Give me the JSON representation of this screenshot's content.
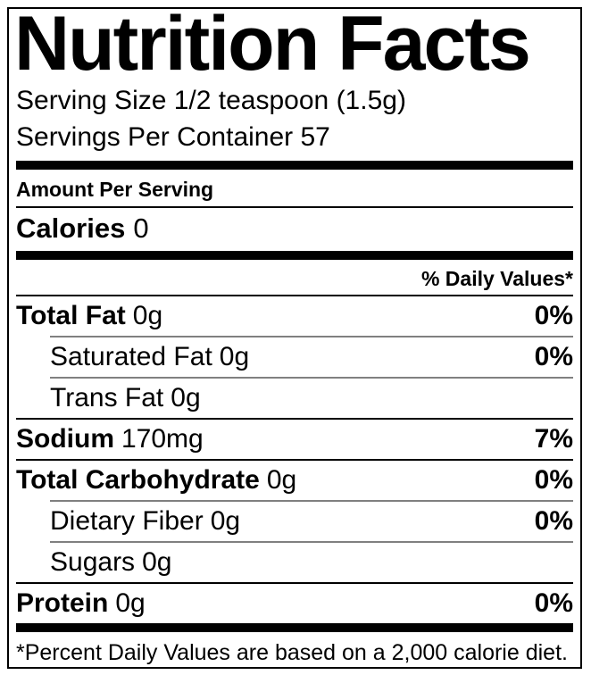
{
  "title": "Nutrition Facts",
  "serving": {
    "size": "Serving Size 1/2 teaspoon (1.5g)",
    "per_container": "Servings Per Container 57"
  },
  "amount_per_serving": "Amount Per Serving",
  "calories": {
    "label": "Calories",
    "value": "0"
  },
  "daily_values_header": "% Daily Values*",
  "rows": [
    {
      "name": "Total Fat",
      "amount": "0g",
      "daily_value": "0%"
    },
    {
      "name": "Saturated Fat",
      "amount": "0g",
      "daily_value": "0%"
    },
    {
      "name": "Trans Fat",
      "amount": "0g",
      "daily_value": ""
    },
    {
      "name": "Sodium",
      "amount": "170mg",
      "daily_value": "7%"
    },
    {
      "name": "Total Carbohydrate",
      "amount": "0g",
      "daily_value": "0%"
    },
    {
      "name": "Dietary Fiber",
      "amount": "0g",
      "daily_value": "0%"
    },
    {
      "name": "Sugars",
      "amount": "0g",
      "daily_value": ""
    },
    {
      "name": "Protein",
      "amount": "0g",
      "daily_value": "0%"
    }
  ],
  "footnote": "*Percent Daily Values are based on a 2,000 calorie diet.",
  "colors": {
    "text": "#000000",
    "background": "#ffffff",
    "border": "#000000"
  }
}
